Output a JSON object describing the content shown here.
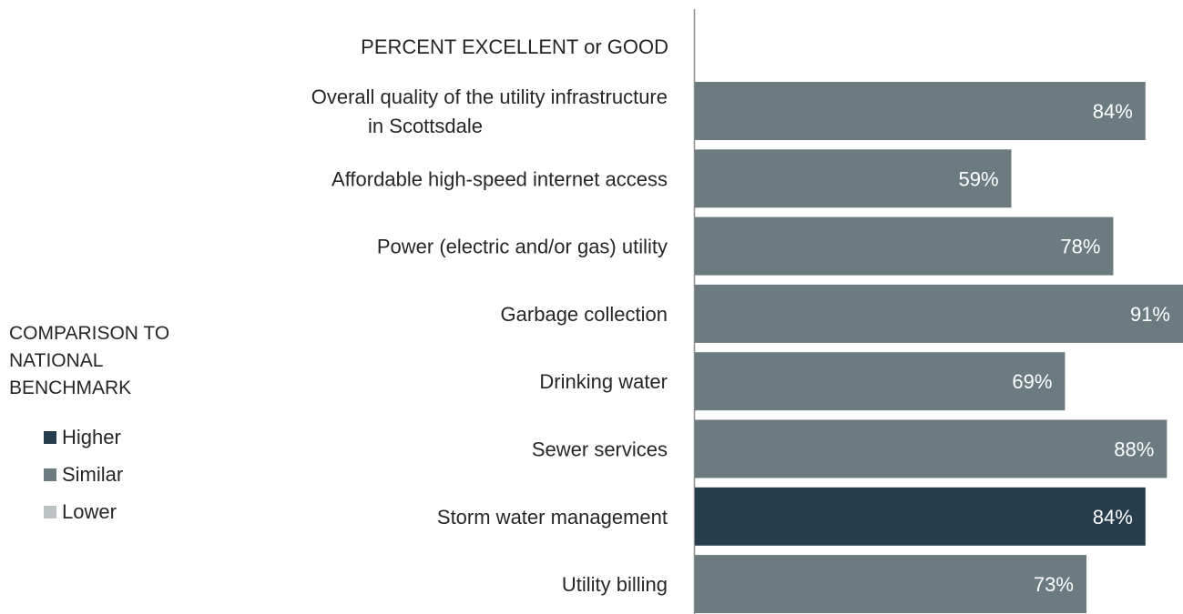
{
  "header": {
    "title": "PERCENT EXCELLENT or GOOD"
  },
  "legend": {
    "title": "COMPARISON TO NATIONAL BENCHMARK",
    "items": [
      {
        "label": "Higher",
        "color": "#263d4e"
      },
      {
        "label": "Similar",
        "color": "#6b7b80"
      },
      {
        "label": "Lower",
        "color": "#bcc1c4"
      }
    ]
  },
  "chart_data": {
    "type": "bar",
    "orientation": "horizontal",
    "title": "PERCENT EXCELLENT or GOOD",
    "categories": [
      "Overall quality of the utility infrastructure in Scottsdale",
      "Affordable high-speed internet access",
      "Power (electric and/or gas) utility",
      "Garbage collection",
      "Drinking water",
      "Sewer services",
      "Storm water management",
      "Utility billing"
    ],
    "values": [
      84,
      59,
      78,
      91,
      69,
      88,
      84,
      73
    ],
    "value_labels": [
      "84%",
      "59%",
      "78%",
      "91%",
      "69%",
      "88%",
      "84%",
      "73%"
    ],
    "comparison": [
      "Similar",
      "Similar",
      "Similar",
      "Similar",
      "Similar",
      "Similar",
      "Higher",
      "Similar"
    ],
    "xlim": [
      0,
      91
    ],
    "grid": false,
    "legend_position": "left"
  }
}
